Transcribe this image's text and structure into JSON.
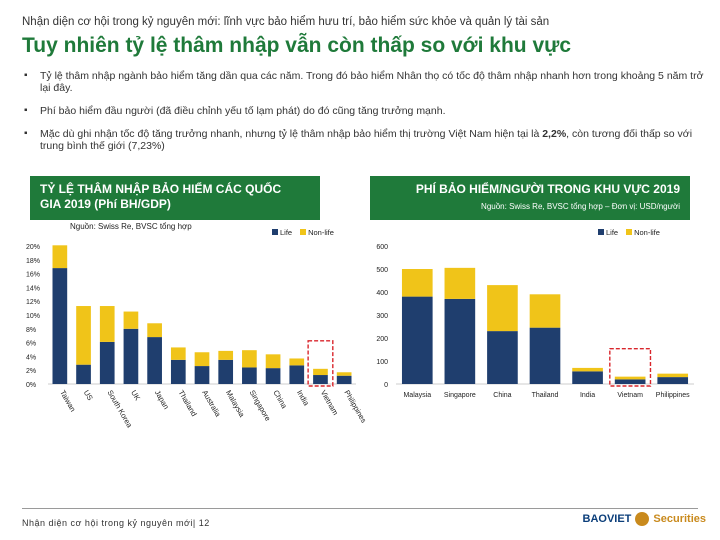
{
  "header": {
    "supertitle": "Nhận diện cơ hội trong kỷ nguyên mới: lĩnh vực bảo hiểm hưu trí, bảo hiểm sức khỏe và quản lý tài sản",
    "title": "Tuy nhiên tỷ lệ thâm nhập vẫn còn thấp so với khu vực"
  },
  "bullets": [
    {
      "text": "Tỷ lệ thâm nhập ngành bảo hiểm tăng dần qua các năm. Trong đó bảo hiểm Nhân thọ có tốc độ thâm nhập nhanh hơn trong khoảng 5 năm trở lại đây."
    },
    {
      "text": "Phí bảo hiểm đầu người (đã điều chỉnh yếu tố lạm phát) do đó cũng tăng trưởng mạnh."
    },
    {
      "text_before": "Mặc dù ghi nhận tốc độ tăng trưởng nhanh, nhưng tỷ lệ thâm nhập bảo hiểm thị trường Việt Nam hiện tại là ",
      "highlight": "2,2%",
      "text_after": ", còn tương đối thấp so với trung bình thế giới (7,23%)"
    }
  ],
  "colors": {
    "life": "#1f3e6e",
    "nonlife": "#f0c419",
    "banner": "#1f7a3a",
    "highlight_box": "#d9262c"
  },
  "chart_data": [
    {
      "type": "bar",
      "stacked": true,
      "title": "TỶ LỆ THÂM NHẬP BẢO HIỂM CÁC QUỐC GIA 2019 (Phí BH/GDP)",
      "source": "Nguồn: Swiss Re, BVSC tổng hợp",
      "categories": [
        "Taiwan",
        "US",
        "South Korea",
        "UK",
        "Japan",
        "Thailand",
        "Australia",
        "Malaysia",
        "Singapore",
        "China",
        "India",
        "Vietnam",
        "Philippines"
      ],
      "series": [
        {
          "name": "Life",
          "values": [
            16.8,
            2.8,
            6.1,
            8.0,
            6.8,
            3.5,
            2.6,
            3.5,
            2.4,
            2.3,
            2.7,
            1.3,
            1.2
          ]
        },
        {
          "name": "Non-life",
          "values": [
            3.3,
            8.5,
            5.2,
            2.5,
            2.0,
            1.8,
            2.0,
            1.3,
            2.5,
            2.0,
            1.0,
            0.9,
            0.5
          ]
        }
      ],
      "yticks": [
        "0%",
        "2%",
        "4%",
        "6%",
        "8%",
        "10%",
        "12%",
        "14%",
        "16%",
        "18%",
        "20%"
      ],
      "ylim": [
        0,
        20
      ],
      "highlight": "Vietnam",
      "legend": [
        "Life",
        "Non-life"
      ]
    },
    {
      "type": "bar",
      "stacked": true,
      "title": "PHÍ BẢO HIỂM/NGƯỜI TRONG KHU VỰC 2019",
      "source": "Nguồn: Swiss Re, BVSC tổng hợp – Đơn vị: USD/người",
      "categories": [
        "Malaysia",
        "Singapore",
        "China",
        "Thailand",
        "India",
        "Vietnam",
        "Philippines"
      ],
      "series": [
        {
          "name": "Life",
          "values": [
            380,
            370,
            230,
            245,
            55,
            20,
            30
          ]
        },
        {
          "name": "Non-life",
          "values": [
            120,
            135,
            200,
            145,
            15,
            12,
            15
          ]
        }
      ],
      "yticks": [
        "0",
        "100",
        "200",
        "300",
        "400",
        "500",
        "600"
      ],
      "ylim": [
        0,
        600
      ],
      "highlight": "Vietnam",
      "legend": [
        "Life",
        "Non-life"
      ]
    }
  ],
  "footer": {
    "text": "Nhận diện cơ hội trong kỷ nguyên mới| 12"
  },
  "logo": {
    "brand": "BAOVIET",
    "suffix": "Securities"
  }
}
